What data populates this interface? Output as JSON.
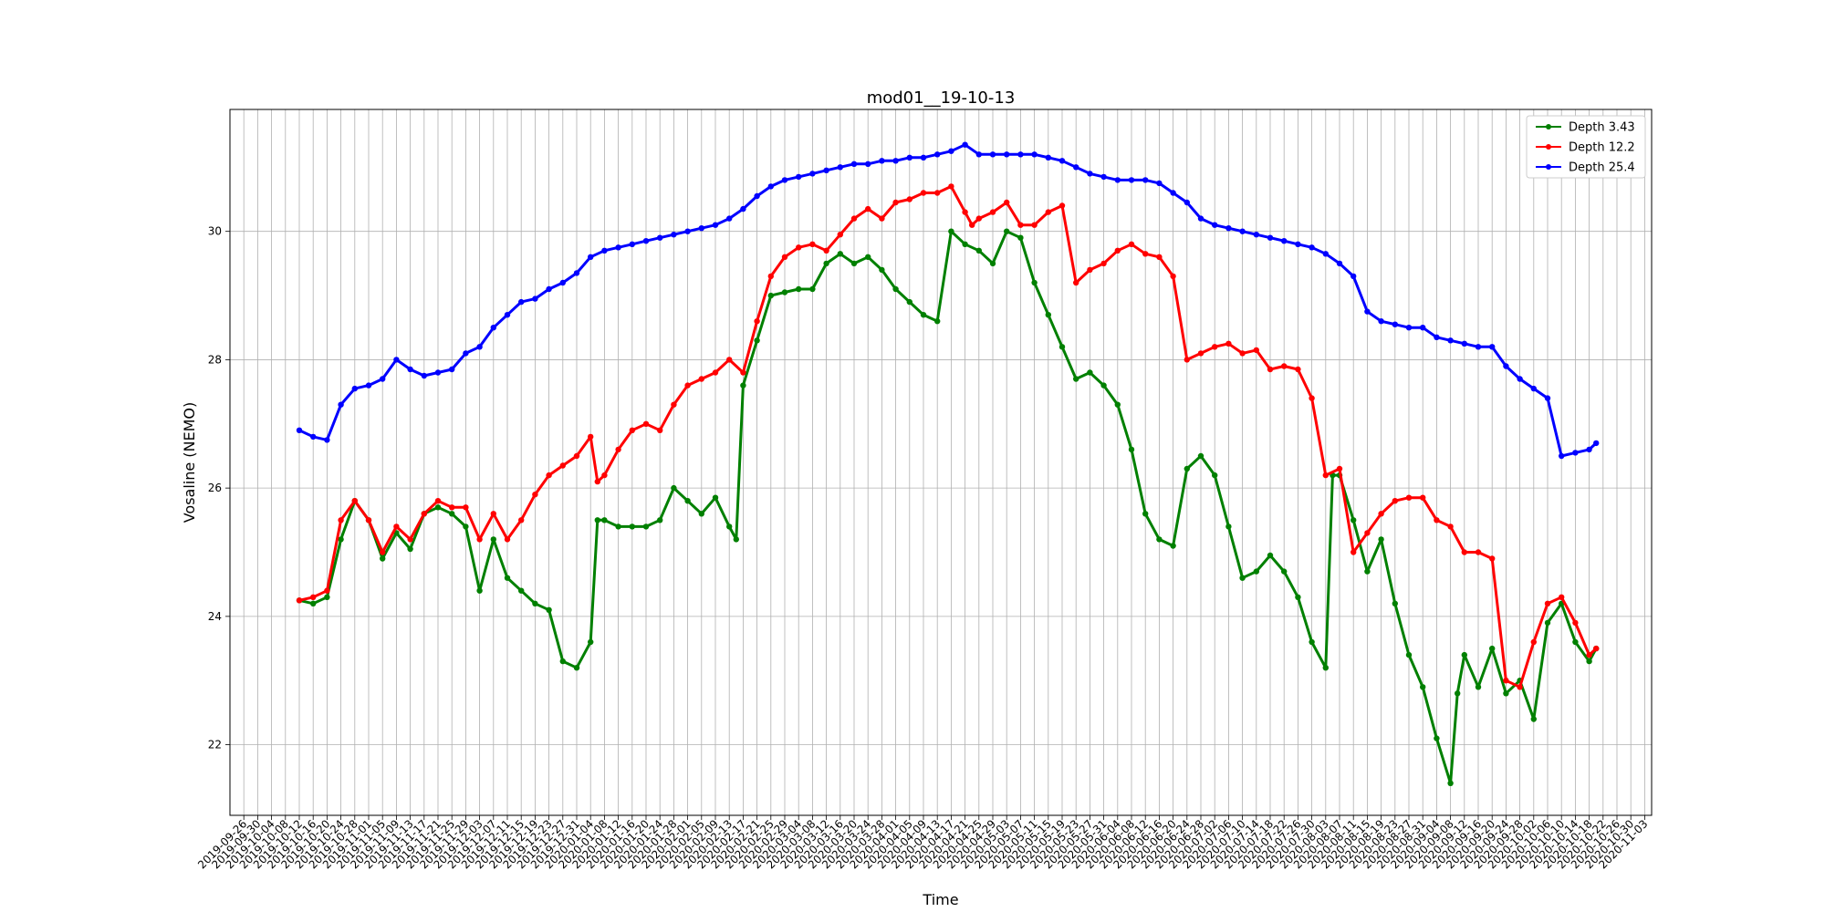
{
  "chart_data": {
    "type": "line",
    "title": "mod01__19-10-13",
    "xlabel": "Time",
    "ylabel": "Vosaline (NEMO)",
    "grid": true,
    "legend_position": "top-right",
    "ylim": [
      20.9,
      31.9
    ],
    "xlim": [
      "2019-09-22",
      "2020-11-05"
    ],
    "y_ticks": [
      22,
      24,
      26,
      28,
      30
    ],
    "x_tick_labels": [
      "2019-09-26",
      "2019-09-30",
      "2019-10-04",
      "2019-10-08",
      "2019-10-12",
      "2019-10-16",
      "2019-10-20",
      "2019-10-24",
      "2019-10-28",
      "2019-11-01",
      "2019-11-05",
      "2019-11-09",
      "2019-11-13",
      "2019-11-17",
      "2019-11-21",
      "2019-11-25",
      "2019-11-29",
      "2019-12-03",
      "2019-12-07",
      "2019-12-11",
      "2019-12-15",
      "2019-12-19",
      "2019-12-23",
      "2019-12-27",
      "2019-12-31",
      "2020-01-04",
      "2020-01-08",
      "2020-01-12",
      "2020-01-16",
      "2020-01-20",
      "2020-01-24",
      "2020-01-28",
      "2020-02-01",
      "2020-02-05",
      "2020-02-09",
      "2020-02-13",
      "2020-02-17",
      "2020-02-21",
      "2020-02-25",
      "2020-02-29",
      "2020-03-04",
      "2020-03-08",
      "2020-03-12",
      "2020-03-16",
      "2020-03-20",
      "2020-03-24",
      "2020-03-28",
      "2020-04-01",
      "2020-04-05",
      "2020-04-09",
      "2020-04-13",
      "2020-04-17",
      "2020-04-21",
      "2020-04-25",
      "2020-04-29",
      "2020-05-03",
      "2020-05-07",
      "2020-05-11",
      "2020-05-15",
      "2020-05-19",
      "2020-05-23",
      "2020-05-27",
      "2020-05-31",
      "2020-06-04",
      "2020-06-08",
      "2020-06-12",
      "2020-06-16",
      "2020-06-20",
      "2020-06-24",
      "2020-06-28",
      "2020-07-02",
      "2020-07-06",
      "2020-07-10",
      "2020-07-14",
      "2020-07-18",
      "2020-07-22",
      "2020-07-26",
      "2020-07-30",
      "2020-08-03",
      "2020-08-07",
      "2020-08-11",
      "2020-08-15",
      "2020-08-19",
      "2020-08-23",
      "2020-08-27",
      "2020-08-31",
      "2020-09-04",
      "2020-09-08",
      "2020-09-12",
      "2020-09-16",
      "2020-09-20",
      "2020-09-24",
      "2020-09-28",
      "2020-10-02",
      "2020-10-06",
      "2020-10-10",
      "2020-10-14",
      "2020-10-18",
      "2020-10-22",
      "2020-10-26",
      "2020-10-30",
      "2020-11-03"
    ],
    "series": [
      {
        "name": "Depth 3.43",
        "color": "#008000",
        "x": [
          "2019-10-12",
          "2019-10-16",
          "2019-10-20",
          "2019-10-24",
          "2019-10-28",
          "2019-11-01",
          "2019-11-05",
          "2019-11-09",
          "2019-11-13",
          "2019-11-17",
          "2019-11-21",
          "2019-11-25",
          "2019-11-29",
          "2019-12-03",
          "2019-12-07",
          "2019-12-11",
          "2019-12-15",
          "2019-12-19",
          "2019-12-23",
          "2019-12-27",
          "2019-12-31",
          "2020-01-04",
          "2020-01-06",
          "2020-01-08",
          "2020-01-12",
          "2020-01-16",
          "2020-01-20",
          "2020-01-24",
          "2020-01-28",
          "2020-02-01",
          "2020-02-05",
          "2020-02-09",
          "2020-02-13",
          "2020-02-15",
          "2020-02-17",
          "2020-02-21",
          "2020-02-25",
          "2020-02-29",
          "2020-03-04",
          "2020-03-08",
          "2020-03-12",
          "2020-03-16",
          "2020-03-20",
          "2020-03-24",
          "2020-03-28",
          "2020-04-01",
          "2020-04-05",
          "2020-04-09",
          "2020-04-13",
          "2020-04-17",
          "2020-04-21",
          "2020-04-25",
          "2020-04-29",
          "2020-05-03",
          "2020-05-07",
          "2020-05-11",
          "2020-05-15",
          "2020-05-19",
          "2020-05-23",
          "2020-05-27",
          "2020-05-31",
          "2020-06-04",
          "2020-06-08",
          "2020-06-12",
          "2020-06-16",
          "2020-06-20",
          "2020-06-24",
          "2020-06-28",
          "2020-07-02",
          "2020-07-06",
          "2020-07-10",
          "2020-07-14",
          "2020-07-18",
          "2020-07-22",
          "2020-07-26",
          "2020-07-30",
          "2020-08-03",
          "2020-08-05",
          "2020-08-07",
          "2020-08-11",
          "2020-08-15",
          "2020-08-19",
          "2020-08-23",
          "2020-08-27",
          "2020-08-31",
          "2020-09-04",
          "2020-09-08",
          "2020-09-10",
          "2020-09-12",
          "2020-09-16",
          "2020-09-20",
          "2020-09-24",
          "2020-09-28",
          "2020-10-02",
          "2020-10-06",
          "2020-10-10",
          "2020-10-14",
          "2020-10-18",
          "2020-10-20"
        ],
        "values": [
          24.25,
          24.2,
          24.3,
          25.2,
          25.8,
          25.5,
          24.9,
          25.3,
          25.05,
          25.6,
          25.7,
          25.6,
          25.4,
          24.4,
          25.2,
          24.6,
          24.4,
          24.2,
          24.1,
          23.3,
          23.2,
          23.6,
          25.5,
          25.5,
          25.4,
          25.4,
          25.4,
          25.5,
          26.0,
          25.8,
          25.6,
          25.85,
          25.4,
          25.2,
          27.6,
          28.3,
          29.0,
          29.05,
          29.1,
          29.1,
          29.5,
          29.65,
          29.5,
          29.6,
          29.4,
          29.1,
          28.9,
          28.7,
          28.6,
          30.0,
          29.8,
          29.7,
          29.5,
          30.0,
          29.9,
          29.2,
          28.7,
          28.2,
          27.7,
          27.8,
          27.6,
          27.3,
          26.6,
          25.6,
          25.2,
          25.1,
          26.3,
          26.5,
          26.2,
          25.4,
          24.6,
          24.7,
          24.95,
          24.7,
          24.3,
          23.6,
          23.2,
          26.2,
          26.2,
          25.5,
          24.7,
          25.2,
          24.2,
          23.4,
          22.9,
          22.1,
          21.4,
          22.8,
          23.4,
          22.9,
          23.5,
          22.8,
          23.0,
          22.4,
          23.9,
          24.2,
          23.6,
          23.3,
          23.5
        ]
      },
      {
        "name": "Depth 12.2",
        "color": "#ff0000",
        "x": [
          "2019-10-12",
          "2019-10-16",
          "2019-10-20",
          "2019-10-24",
          "2019-10-28",
          "2019-11-01",
          "2019-11-05",
          "2019-11-09",
          "2019-11-13",
          "2019-11-17",
          "2019-11-21",
          "2019-11-25",
          "2019-11-29",
          "2019-12-03",
          "2019-12-07",
          "2019-12-11",
          "2019-12-15",
          "2019-12-19",
          "2019-12-23",
          "2019-12-27",
          "2019-12-31",
          "2020-01-04",
          "2020-01-06",
          "2020-01-08",
          "2020-01-12",
          "2020-01-16",
          "2020-01-20",
          "2020-01-24",
          "2020-01-28",
          "2020-02-01",
          "2020-02-05",
          "2020-02-09",
          "2020-02-13",
          "2020-02-17",
          "2020-02-21",
          "2020-02-25",
          "2020-02-29",
          "2020-03-04",
          "2020-03-08",
          "2020-03-12",
          "2020-03-16",
          "2020-03-20",
          "2020-03-24",
          "2020-03-28",
          "2020-04-01",
          "2020-04-05",
          "2020-04-09",
          "2020-04-13",
          "2020-04-17",
          "2020-04-21",
          "2020-04-23",
          "2020-04-25",
          "2020-04-29",
          "2020-05-03",
          "2020-05-07",
          "2020-05-11",
          "2020-05-15",
          "2020-05-19",
          "2020-05-23",
          "2020-05-27",
          "2020-05-31",
          "2020-06-04",
          "2020-06-08",
          "2020-06-12",
          "2020-06-16",
          "2020-06-20",
          "2020-06-24",
          "2020-06-28",
          "2020-07-02",
          "2020-07-06",
          "2020-07-10",
          "2020-07-14",
          "2020-07-18",
          "2020-07-22",
          "2020-07-26",
          "2020-07-30",
          "2020-08-03",
          "2020-08-07",
          "2020-08-11",
          "2020-08-15",
          "2020-08-19",
          "2020-08-23",
          "2020-08-27",
          "2020-08-31",
          "2020-09-04",
          "2020-09-08",
          "2020-09-12",
          "2020-09-16",
          "2020-09-20",
          "2020-09-24",
          "2020-09-28",
          "2020-10-02",
          "2020-10-06",
          "2020-10-10",
          "2020-10-14",
          "2020-10-18",
          "2020-10-20"
        ],
        "values": [
          24.25,
          24.3,
          24.4,
          25.5,
          25.8,
          25.5,
          25.0,
          25.4,
          25.2,
          25.6,
          25.8,
          25.7,
          25.7,
          25.2,
          25.6,
          25.2,
          25.5,
          25.9,
          26.2,
          26.35,
          26.5,
          26.8,
          26.1,
          26.2,
          26.6,
          26.9,
          27.0,
          26.9,
          27.3,
          27.6,
          27.7,
          27.8,
          28.0,
          27.8,
          28.6,
          29.3,
          29.6,
          29.75,
          29.8,
          29.7,
          29.95,
          30.2,
          30.35,
          30.2,
          30.45,
          30.5,
          30.6,
          30.6,
          30.7,
          30.3,
          30.1,
          30.2,
          30.3,
          30.45,
          30.1,
          30.1,
          30.3,
          30.4,
          29.2,
          29.4,
          29.5,
          29.7,
          29.8,
          29.65,
          29.6,
          29.3,
          28.0,
          28.1,
          28.2,
          28.25,
          28.1,
          28.15,
          27.85,
          27.9,
          27.85,
          27.4,
          26.2,
          26.3,
          25.0,
          25.3,
          25.6,
          25.8,
          25.85,
          25.85,
          25.5,
          25.4,
          25.0,
          25.0,
          24.9,
          23.0,
          22.9,
          23.6,
          24.2,
          24.3,
          23.9,
          23.4,
          23.5
        ]
      },
      {
        "name": "Depth 25.4",
        "color": "#0000ff",
        "x": [
          "2019-10-12",
          "2019-10-16",
          "2019-10-20",
          "2019-10-24",
          "2019-10-28",
          "2019-11-01",
          "2019-11-05",
          "2019-11-09",
          "2019-11-13",
          "2019-11-17",
          "2019-11-21",
          "2019-11-25",
          "2019-11-29",
          "2019-12-03",
          "2019-12-07",
          "2019-12-11",
          "2019-12-15",
          "2019-12-19",
          "2019-12-23",
          "2019-12-27",
          "2019-12-31",
          "2020-01-04",
          "2020-01-08",
          "2020-01-12",
          "2020-01-16",
          "2020-01-20",
          "2020-01-24",
          "2020-01-28",
          "2020-02-01",
          "2020-02-05",
          "2020-02-09",
          "2020-02-13",
          "2020-02-17",
          "2020-02-21",
          "2020-02-25",
          "2020-02-29",
          "2020-03-04",
          "2020-03-08",
          "2020-03-12",
          "2020-03-16",
          "2020-03-20",
          "2020-03-24",
          "2020-03-28",
          "2020-04-01",
          "2020-04-05",
          "2020-04-09",
          "2020-04-13",
          "2020-04-17",
          "2020-04-21",
          "2020-04-25",
          "2020-04-29",
          "2020-05-03",
          "2020-05-07",
          "2020-05-11",
          "2020-05-15",
          "2020-05-19",
          "2020-05-23",
          "2020-05-27",
          "2020-05-31",
          "2020-06-04",
          "2020-06-08",
          "2020-06-12",
          "2020-06-16",
          "2020-06-20",
          "2020-06-24",
          "2020-06-28",
          "2020-07-02",
          "2020-07-06",
          "2020-07-10",
          "2020-07-14",
          "2020-07-18",
          "2020-07-22",
          "2020-07-26",
          "2020-07-30",
          "2020-08-03",
          "2020-08-07",
          "2020-08-11",
          "2020-08-15",
          "2020-08-19",
          "2020-08-23",
          "2020-08-27",
          "2020-08-31",
          "2020-09-04",
          "2020-09-08",
          "2020-09-12",
          "2020-09-16",
          "2020-09-20",
          "2020-09-24",
          "2020-09-28",
          "2020-10-02",
          "2020-10-06",
          "2020-10-10",
          "2020-10-14",
          "2020-10-18",
          "2020-10-20"
        ],
        "values": [
          26.9,
          26.8,
          26.75,
          27.3,
          27.55,
          27.6,
          27.7,
          28.0,
          27.85,
          27.75,
          27.8,
          27.85,
          28.1,
          28.2,
          28.5,
          28.7,
          28.9,
          28.95,
          29.1,
          29.2,
          29.35,
          29.6,
          29.7,
          29.75,
          29.8,
          29.85,
          29.9,
          29.95,
          30.0,
          30.05,
          30.1,
          30.2,
          30.35,
          30.55,
          30.7,
          30.8,
          30.85,
          30.9,
          30.95,
          31.0,
          31.05,
          31.05,
          31.1,
          31.1,
          31.15,
          31.15,
          31.2,
          31.25,
          31.35,
          31.2,
          31.2,
          31.2,
          31.2,
          31.2,
          31.15,
          31.1,
          31.0,
          30.9,
          30.85,
          30.8,
          30.8,
          30.8,
          30.75,
          30.6,
          30.45,
          30.2,
          30.1,
          30.05,
          30.0,
          29.95,
          29.9,
          29.85,
          29.8,
          29.75,
          29.65,
          29.5,
          29.3,
          28.75,
          28.6,
          28.55,
          28.5,
          28.5,
          28.35,
          28.3,
          28.25,
          28.2,
          28.2,
          27.9,
          27.7,
          27.55,
          27.4,
          26.5,
          26.55,
          26.6,
          26.7
        ]
      }
    ]
  }
}
